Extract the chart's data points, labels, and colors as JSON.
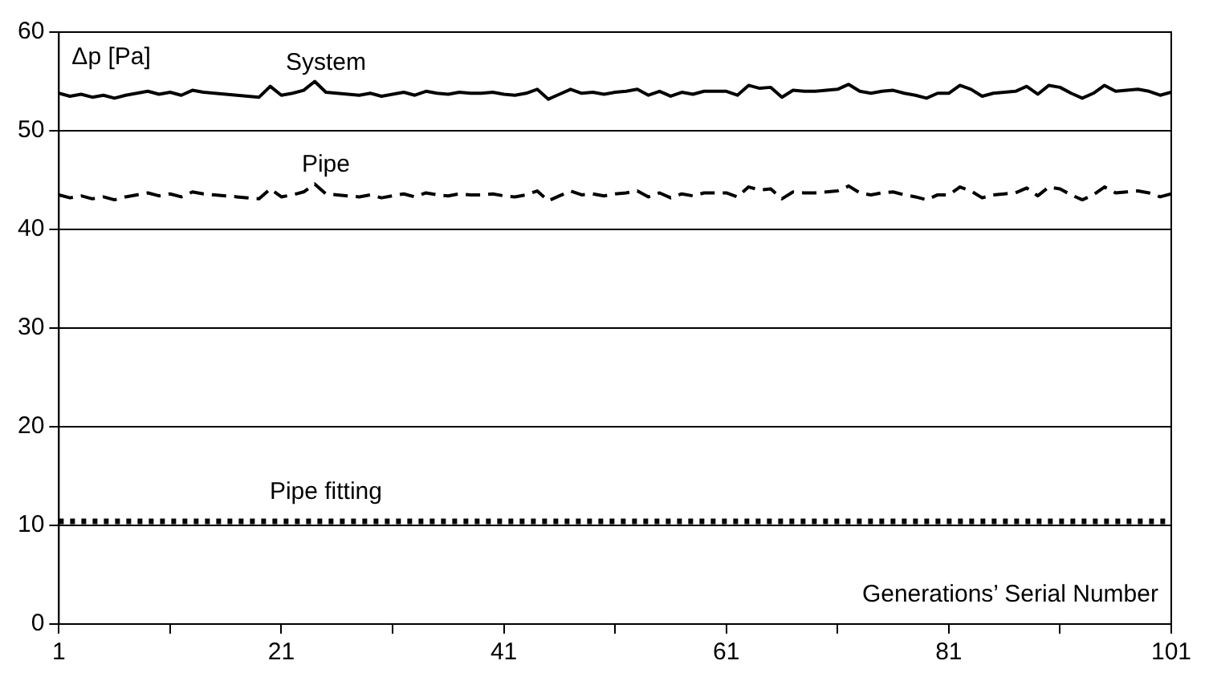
{
  "chart_data": {
    "type": "line",
    "xlabel": "Generations’ Serial Number",
    "ylabel": "Δp [Pa]",
    "x": [
      1,
      2,
      3,
      4,
      5,
      6,
      7,
      8,
      9,
      10,
      11,
      12,
      13,
      14,
      15,
      16,
      17,
      18,
      19,
      20,
      21,
      22,
      23,
      24,
      25,
      26,
      27,
      28,
      29,
      30,
      31,
      32,
      33,
      34,
      35,
      36,
      37,
      38,
      39,
      40,
      41,
      42,
      43,
      44,
      45,
      46,
      47,
      48,
      49,
      50,
      51,
      52,
      53,
      54,
      55,
      56,
      57,
      58,
      59,
      60,
      61,
      62,
      63,
      64,
      65,
      66,
      67,
      68,
      69,
      70,
      71,
      72,
      73,
      74,
      75,
      76,
      77,
      78,
      79,
      80,
      81,
      82,
      83,
      84,
      85,
      86,
      87,
      88,
      89,
      90,
      91,
      92,
      93,
      94,
      95,
      96,
      97,
      98,
      99,
      100,
      101
    ],
    "xlim": [
      1,
      101
    ],
    "xticks": [
      1,
      {
        "value": 11,
        "label": null
      },
      21,
      {
        "value": 31,
        "label": null
      },
      41,
      {
        "value": 51,
        "label": null
      },
      61,
      {
        "value": 71,
        "label": null
      },
      81,
      {
        "value": 91,
        "label": null
      },
      101
    ],
    "ylim": [
      0,
      60
    ],
    "yticks": [
      0,
      10,
      20,
      30,
      40,
      50,
      60
    ],
    "grid": "y",
    "legend": false,
    "marker": "none",
    "series": [
      {
        "name": "System",
        "color": "#000000",
        "line_style": "solid",
        "values": [
          53.8,
          53.5,
          53.7,
          53.4,
          53.6,
          53.3,
          53.6,
          53.8,
          54.0,
          53.7,
          53.9,
          53.6,
          54.1,
          53.9,
          53.8,
          53.7,
          53.6,
          53.5,
          53.4,
          54.5,
          53.6,
          53.8,
          54.1,
          55.0,
          53.9,
          53.8,
          53.7,
          53.6,
          53.8,
          53.5,
          53.7,
          53.9,
          53.6,
          54.0,
          53.8,
          53.7,
          53.9,
          53.8,
          53.8,
          53.9,
          53.7,
          53.6,
          53.8,
          54.2,
          53.2,
          53.7,
          54.2,
          53.8,
          53.9,
          53.7,
          53.9,
          54.0,
          54.2,
          53.6,
          54.0,
          53.5,
          53.9,
          53.7,
          54.0,
          54.0,
          54.0,
          53.6,
          54.6,
          54.3,
          54.4,
          53.4,
          54.1,
          54.0,
          54.0,
          54.1,
          54.2,
          54.7,
          54.0,
          53.8,
          54.0,
          54.1,
          53.8,
          53.6,
          53.3,
          53.8,
          53.8,
          54.6,
          54.2,
          53.5,
          53.8,
          53.9,
          54.0,
          54.5,
          53.7,
          54.6,
          54.4,
          53.8,
          53.3,
          53.8,
          54.6,
          54.0,
          54.1,
          54.2,
          54.0,
          53.6,
          53.9
        ]
      },
      {
        "name": "Pipe",
        "color": "#000000",
        "line_style": "dashed",
        "values": [
          43.5,
          43.2,
          43.4,
          43.1,
          43.3,
          43.0,
          43.3,
          43.5,
          43.7,
          43.4,
          43.6,
          43.3,
          43.8,
          43.6,
          43.5,
          43.4,
          43.3,
          43.2,
          43.1,
          44.1,
          43.3,
          43.5,
          43.8,
          44.6,
          43.6,
          43.5,
          43.4,
          43.3,
          43.5,
          43.2,
          43.4,
          43.6,
          43.3,
          43.7,
          43.5,
          43.4,
          43.6,
          43.5,
          43.5,
          43.6,
          43.4,
          43.3,
          43.5,
          43.9,
          42.9,
          43.4,
          43.9,
          43.5,
          43.6,
          43.4,
          43.6,
          43.7,
          43.9,
          43.3,
          43.7,
          43.2,
          43.6,
          43.4,
          43.7,
          43.7,
          43.7,
          43.3,
          44.3,
          44.0,
          44.1,
          43.1,
          43.8,
          43.7,
          43.7,
          43.8,
          43.9,
          44.4,
          43.7,
          43.5,
          43.7,
          43.8,
          43.5,
          43.3,
          43.0,
          43.5,
          43.5,
          44.3,
          43.9,
          43.2,
          43.5,
          43.6,
          43.7,
          44.2,
          43.4,
          44.3,
          44.1,
          43.5,
          43.0,
          43.5,
          44.3,
          43.7,
          43.8,
          43.9,
          43.7,
          43.3,
          43.6
        ]
      },
      {
        "name": "Pipe fitting",
        "color": "#000000",
        "line_style": "dotted",
        "values": [
          10.4,
          10.4,
          10.4,
          10.4,
          10.4,
          10.4,
          10.4,
          10.4,
          10.4,
          10.4,
          10.4,
          10.4,
          10.4,
          10.4,
          10.4,
          10.4,
          10.4,
          10.4,
          10.4,
          10.4,
          10.4,
          10.4,
          10.4,
          10.4,
          10.4,
          10.4,
          10.4,
          10.4,
          10.4,
          10.4,
          10.4,
          10.4,
          10.4,
          10.4,
          10.4,
          10.4,
          10.4,
          10.4,
          10.4,
          10.4,
          10.4,
          10.4,
          10.4,
          10.4,
          10.4,
          10.4,
          10.4,
          10.4,
          10.4,
          10.4,
          10.4,
          10.4,
          10.4,
          10.4,
          10.4,
          10.4,
          10.4,
          10.4,
          10.4,
          10.4,
          10.4,
          10.4,
          10.4,
          10.4,
          10.4,
          10.4,
          10.4,
          10.4,
          10.4,
          10.4,
          10.4,
          10.4,
          10.4,
          10.4,
          10.4,
          10.4,
          10.4,
          10.4,
          10.4,
          10.4,
          10.4,
          10.4,
          10.4,
          10.4,
          10.4,
          10.4,
          10.4,
          10.4,
          10.4,
          10.4,
          10.4,
          10.4,
          10.4,
          10.4,
          10.4,
          10.4,
          10.4,
          10.4,
          10.4,
          10.4,
          10.4
        ]
      }
    ]
  }
}
